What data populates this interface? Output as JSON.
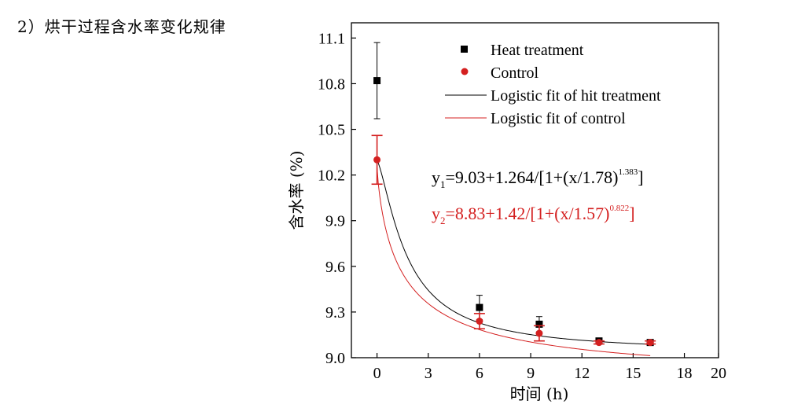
{
  "heading": "2）烘干过程含水率变化规律",
  "chart_data": {
    "type": "scatter",
    "xlabel": "时间 (h)",
    "ylabel": "含水率 (%)",
    "xlim": [
      -1.5,
      20
    ],
    "ylim": [
      9.0,
      11.2
    ],
    "xticks": [
      0,
      3,
      6,
      9,
      12,
      15,
      18,
      20
    ],
    "xtick_labels": [
      "0",
      "3",
      "6",
      "9",
      "12",
      "15",
      "18",
      "20"
    ],
    "yticks": [
      9.0,
      9.3,
      9.6,
      9.9,
      10.2,
      10.5,
      10.8,
      11.1
    ],
    "ytick_labels": [
      "9.0",
      "9.3",
      "9.6",
      "9.9",
      "10.2",
      "10.5",
      "10.8",
      "11.1"
    ],
    "legend_position": "top-right",
    "series": [
      {
        "name": "Heat treatment",
        "marker": "square",
        "color": "#000000",
        "points": [
          {
            "x": 0,
            "y": 10.82,
            "err": 0.25
          },
          {
            "x": 6,
            "y": 9.33,
            "err": 0.08
          },
          {
            "x": 9.5,
            "y": 9.22,
            "err": 0.05
          },
          {
            "x": 13,
            "y": 9.11,
            "err": 0.01
          },
          {
            "x": 16,
            "y": 9.1,
            "err": 0.01
          }
        ]
      },
      {
        "name": "Control",
        "marker": "circle",
        "color": "#d42020",
        "points": [
          {
            "x": 0,
            "y": 10.3,
            "err": 0.16
          },
          {
            "x": 6,
            "y": 9.24,
            "err": 0.05
          },
          {
            "x": 9.5,
            "y": 9.16,
            "err": 0.05
          },
          {
            "x": 13,
            "y": 9.1,
            "err": 0.01
          },
          {
            "x": 16,
            "y": 9.1,
            "err": 0.01
          }
        ]
      }
    ],
    "fits": [
      {
        "name": "Logistic fit of hit treatment",
        "color": "#000000",
        "A2": 9.03,
        "amp": 1.264,
        "x0": 1.78,
        "p": 1.383
      },
      {
        "name": "Logistic fit of control",
        "color": "#d42020",
        "A2": 8.83,
        "amp": 1.42,
        "x0": 1.57,
        "p": 0.822
      }
    ],
    "equations": [
      {
        "prefix": "y",
        "sub": "1",
        "body": "=9.03+1.264/[1+(x/1.78)",
        "sup": "1.383",
        "end": "]",
        "color": "#000000"
      },
      {
        "prefix": "y",
        "sub": "2",
        "body": "=8.83+1.42/[1+(x/1.57)",
        "sup": "0.822",
        "end": "]",
        "color": "#d42020"
      }
    ]
  }
}
